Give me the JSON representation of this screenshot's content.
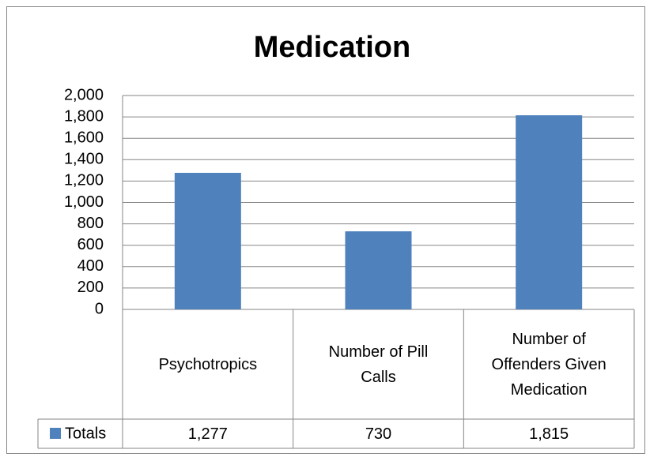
{
  "chart_data": {
    "type": "bar",
    "title": "Medication",
    "categories": [
      "Psychotropics",
      "Number of Pill Calls",
      "Number of Offenders Given Medication"
    ],
    "series": [
      {
        "name": "Totals",
        "color": "#4f81bd",
        "values": [
          1277,
          730,
          1815
        ],
        "value_labels": [
          "1,277",
          "730",
          "1,815"
        ]
      }
    ],
    "ylim": [
      0,
      2000
    ],
    "yticks": [
      0,
      200,
      400,
      600,
      800,
      {
        "value": 1000,
        "label": "1,000"
      },
      {
        "value": 1200,
        "label": "1,200"
      },
      {
        "value": 1400,
        "label": "1,400"
      },
      {
        "value": 1600,
        "label": "1,600"
      },
      {
        "value": 1800,
        "label": "1,800"
      },
      {
        "value": 2000,
        "label": "2,000"
      }
    ],
    "grid": true,
    "data_table": true
  }
}
